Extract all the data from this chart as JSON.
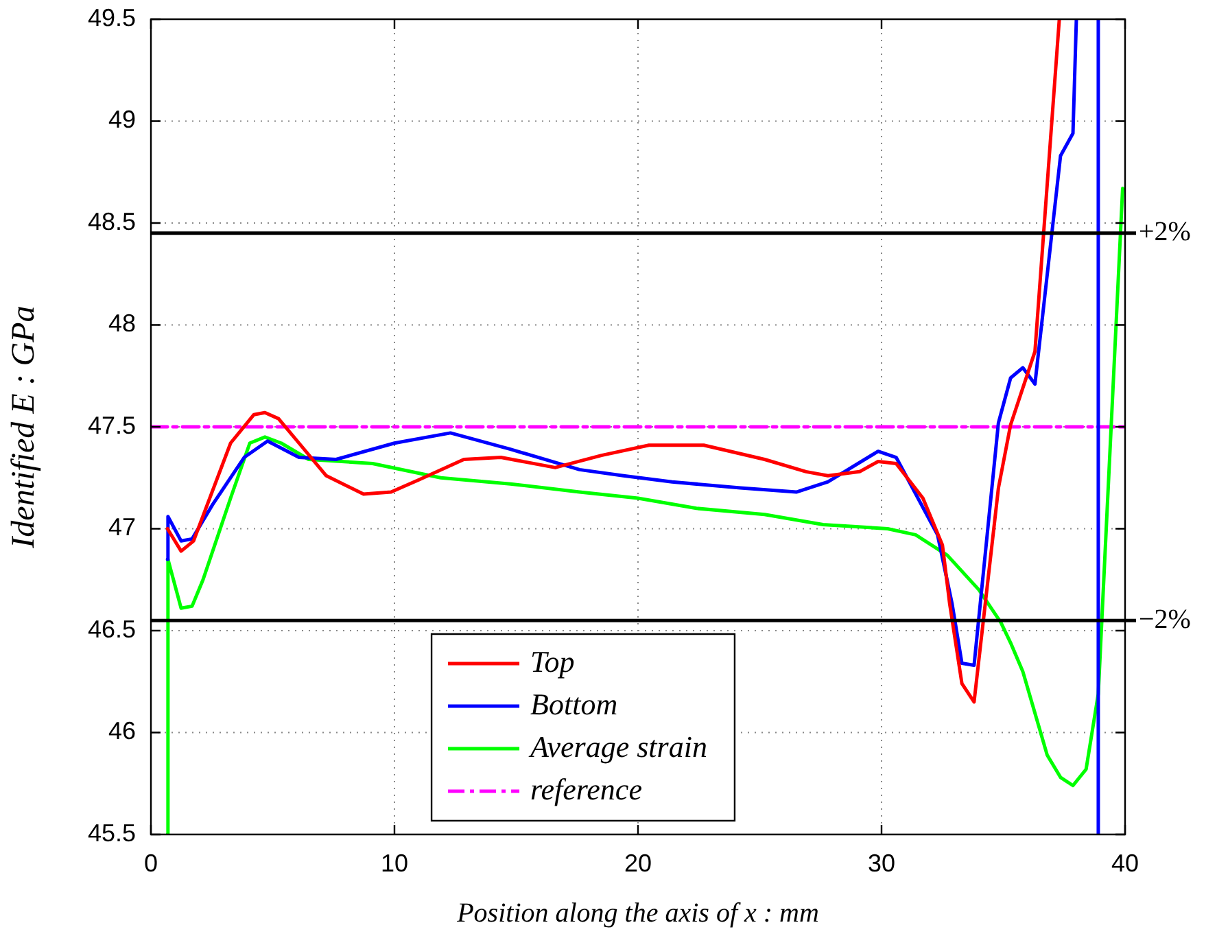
{
  "chart_data": {
    "type": "line",
    "xlabel": "Position along the axis of x : mm",
    "ylabel": "Identified E : GPa",
    "xlim": [
      0,
      40
    ],
    "xticks": [
      0,
      10,
      20,
      30,
      40
    ],
    "ylim": [
      45.5,
      49.5
    ],
    "yticks": [
      45.5,
      46,
      46.5,
      47,
      47.5,
      48,
      48.5,
      49,
      49.5
    ],
    "grid": true,
    "legend": "bottom",
    "marker": "none",
    "ref_lines": [
      {
        "axis": "y",
        "value": 48.45,
        "color": "#000000"
      },
      {
        "axis": "y",
        "value": 46.55,
        "color": "#000000"
      }
    ],
    "annotations": [
      {
        "text": "+2%",
        "x": 40,
        "y": 48.45
      },
      {
        "text": "−2%",
        "x": 40,
        "y": 46.55
      }
    ],
    "series": [
      {
        "name": "Top",
        "color": "#ff0000",
        "x": [
          0.68,
          1.24,
          1.75,
          3.27,
          4.23,
          4.68,
          5.24,
          6.08,
          7.2,
          8.73,
          9.86,
          11.0,
          12.85,
          14.37,
          16.6,
          18.5,
          20.45,
          22.7,
          25.2,
          26.9,
          27.8,
          29.1,
          29.86,
          30.6,
          31.7,
          32.5,
          32.8,
          33.3,
          33.8,
          34.8,
          35.3,
          36.3,
          37.3
        ],
        "values": [
          47.0,
          46.89,
          46.94,
          47.42,
          47.56,
          47.57,
          47.54,
          47.42,
          47.26,
          47.17,
          47.18,
          47.24,
          47.34,
          47.35,
          47.3,
          47.36,
          47.41,
          47.41,
          47.34,
          47.28,
          47.26,
          47.28,
          47.33,
          47.32,
          47.15,
          46.92,
          46.63,
          46.24,
          46.15,
          47.2,
          47.51,
          47.87,
          49.5
        ]
      },
      {
        "name": "Bottom",
        "color": "#0000ff",
        "x": [
          0.68,
          0.7,
          1.24,
          1.69,
          2.54,
          3.83,
          4.79,
          6.08,
          7.6,
          10.0,
          12.3,
          14.76,
          17.6,
          19.4,
          21.4,
          24.2,
          26.5,
          27.8,
          29.86,
          30.6,
          32.3,
          32.9,
          33.3,
          33.8,
          34.8,
          35.3,
          35.8,
          36.3,
          37.35,
          37.86,
          38.0,
          38.5,
          38.9,
          38.9
        ],
        "values": [
          46.85,
          47.06,
          46.94,
          46.95,
          47.12,
          47.35,
          47.43,
          47.35,
          47.34,
          47.42,
          47.47,
          47.39,
          47.29,
          47.26,
          47.23,
          47.2,
          47.18,
          47.23,
          47.38,
          47.35,
          46.97,
          46.63,
          46.34,
          46.33,
          47.52,
          47.74,
          47.79,
          47.71,
          48.83,
          48.94,
          49.5,
          null,
          49.5,
          45.5
        ]
      },
      {
        "name": "Average strain",
        "color": "#00ff00",
        "x": [
          0.68,
          0.7,
          1.24,
          1.69,
          2.14,
          3.27,
          4.06,
          4.68,
          5.35,
          6.48,
          9.1,
          11.9,
          14.76,
          17.6,
          20.0,
          22.4,
          25.2,
          27.6,
          30.25,
          31.4,
          32.7,
          34.0,
          34.9,
          35.3,
          35.8,
          36.8,
          37.35,
          37.86,
          38.4,
          38.9,
          39.9
        ],
        "values": [
          45.5,
          46.85,
          46.61,
          46.62,
          46.75,
          47.15,
          47.42,
          47.45,
          47.42,
          47.34,
          47.32,
          47.25,
          47.22,
          47.18,
          47.15,
          47.1,
          47.07,
          47.02,
          47.0,
          46.97,
          46.87,
          46.7,
          46.54,
          46.44,
          46.3,
          45.89,
          45.78,
          45.74,
          45.82,
          46.19,
          48.67
        ]
      },
      {
        "name": "reference",
        "color": "#ff00ff",
        "line_style": "dashed",
        "x": [
          0,
          40
        ],
        "values": [
          47.5,
          47.5
        ]
      }
    ]
  }
}
